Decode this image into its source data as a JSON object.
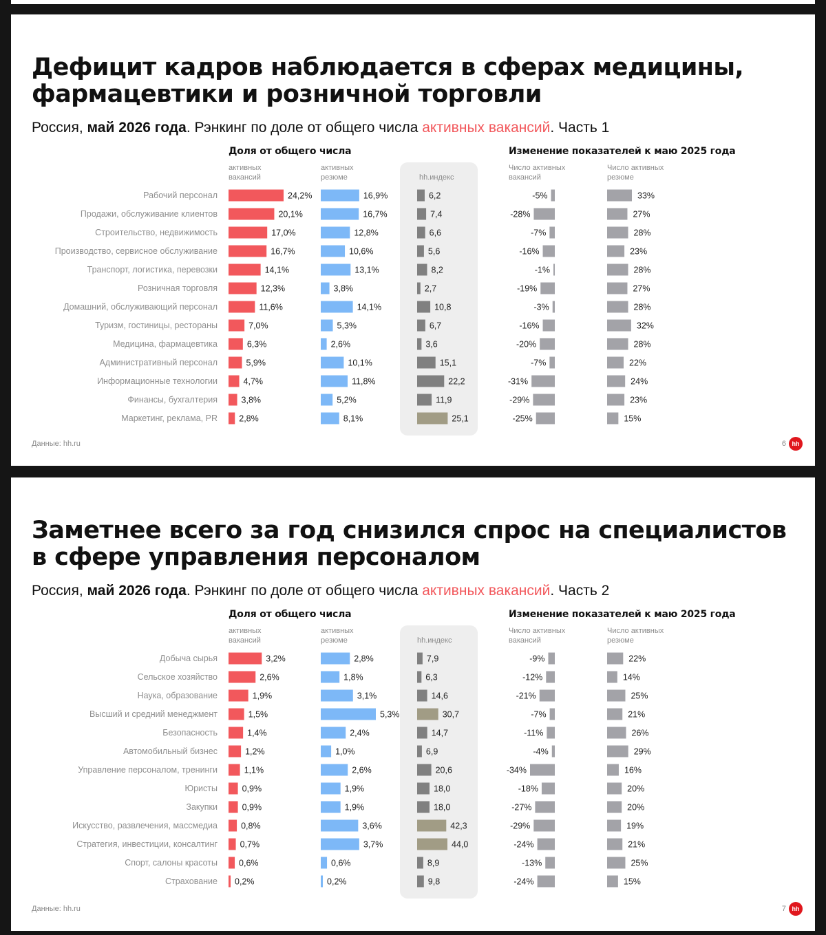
{
  "slides": [
    {
      "title_line1": "Дефицит кадров наблюдается в сферах медицины,",
      "title_line2": "фармацевтики и розничной торговли",
      "subtitle": {
        "part1": "Россия, ",
        "bold": "май 2026 года",
        "part2": ". Рэнкинг по доле от общего числа ",
        "highlight": "активных вакансий",
        "part3": ". Часть 1"
      },
      "header_share": "Доля от общего числа",
      "header_vac_l1": "активных",
      "header_vac_l2": "вакансий",
      "header_res_l1": "активных",
      "header_res_l2": "резюме",
      "header_hh": "hh.индекс",
      "header_change": "Изменение показателей к маю 2025 года",
      "header_chg_vac_l1": "Число активных",
      "header_chg_vac_l2": "вакансий",
      "header_chg_res_l1": "Число активных",
      "header_chg_res_l2": "резюме",
      "source": "Данные: hh.ru",
      "page": "6",
      "logo": "hh"
    },
    {
      "title_line1": "Заметнее всего за год снизился спрос на специалистов",
      "title_line2": "в сфере управления персоналом",
      "subtitle": {
        "part1": "Россия, ",
        "bold": "май 2026 года",
        "part2": ". Рэнкинг по доле от общего числа ",
        "highlight": "активных вакансий",
        "part3": ". Часть 2"
      },
      "header_share": "Доля от общего числа",
      "header_vac_l1": "активных",
      "header_vac_l2": "вакансий",
      "header_res_l1": "активных",
      "header_res_l2": "резюме",
      "header_hh": "hh.индекс",
      "header_change": "Изменение показателей к маю 2025 года",
      "header_chg_vac_l1": "Число активных",
      "header_chg_vac_l2": "вакансий",
      "header_chg_res_l1": "Число активных",
      "header_chg_res_l2": "резюме",
      "source": "Данные: hh.ru",
      "page": "7",
      "logo": "hh"
    }
  ],
  "colors": {
    "vacancies": "#f2585c",
    "resumes": "#7db8f7",
    "hh_index_low": "#808080",
    "hh_index_high": "#a19c85",
    "change": "#a3a3a8",
    "highlight": "#f2585c"
  },
  "chart_data": [
    {
      "type": "table",
      "categories": [
        "Рабочий персонал",
        "Продажи, обслуживание клиентов",
        "Строительство, недвижимость",
        "Производство, сервисное обслуживание",
        "Транспорт, логистика, перевозки",
        "Розничная торговля",
        "Домашний, обслуживающий персонал",
        "Туризм, гостиницы, рестораны",
        "Медицина, фармацевтика",
        "Административный персонал",
        "Информационные технологии",
        "Финансы, бухгалтерия",
        "Маркетинг, реклама, PR"
      ],
      "series": [
        {
          "values": [
            24.2,
            20.1,
            17.0,
            16.7,
            14.1,
            12.3,
            11.6,
            7.0,
            6.3,
            5.9,
            4.7,
            3.8,
            2.8
          ],
          "labels": [
            "24,2%",
            "20,1%",
            "17,0%",
            "16,7%",
            "14,1%",
            "12,3%",
            "11,6%",
            "7,0%",
            "6,3%",
            "5,9%",
            "4,7%",
            "3,8%",
            "2,8%"
          ]
        },
        {
          "values": [
            16.9,
            16.7,
            12.8,
            10.6,
            13.1,
            3.8,
            14.1,
            5.3,
            2.6,
            10.1,
            11.8,
            5.2,
            8.1
          ],
          "labels": [
            "16,9%",
            "16,7%",
            "12,8%",
            "10,6%",
            "13,1%",
            "3,8%",
            "14,1%",
            "5,3%",
            "2,6%",
            "10,1%",
            "11,8%",
            "5,2%",
            "8,1%"
          ]
        },
        {
          "values": [
            6.2,
            7.4,
            6.6,
            5.6,
            8.2,
            2.7,
            10.8,
            6.7,
            3.6,
            15.1,
            22.2,
            11.9,
            25.1
          ],
          "labels": [
            "6,2",
            "7,4",
            "6,6",
            "5,6",
            "8,2",
            "2,7",
            "10,8",
            "6,7",
            "3,6",
            "15,1",
            "22,2",
            "11,9",
            "25,1"
          ]
        },
        {
          "values": [
            -5,
            -28,
            -7,
            -16,
            -1,
            -19,
            -3,
            -16,
            -20,
            -7,
            -31,
            -29,
            -25
          ],
          "labels": [
            "-5%",
            "-28%",
            "-7%",
            "-16%",
            "-1%",
            "-19%",
            "-3%",
            "-16%",
            "-20%",
            "-7%",
            "-31%",
            "-29%",
            "-25%"
          ]
        },
        {
          "values": [
            33,
            27,
            28,
            23,
            28,
            27,
            28,
            32,
            28,
            22,
            24,
            23,
            15
          ],
          "labels": [
            "33%",
            "27%",
            "28%",
            "23%",
            "28%",
            "27%",
            "28%",
            "32%",
            "28%",
            "22%",
            "24%",
            "23%",
            "15%"
          ]
        }
      ]
    },
    {
      "type": "table",
      "categories": [
        "Добыча сырья",
        "Сельское хозяйство",
        "Наука, образование",
        "Высший и средний менеджмент",
        "Безопасность",
        "Автомобильный бизнес",
        "Управление персоналом, тренинги",
        "Юристы",
        "Закупки",
        "Искусство, развлечения, массмедиа",
        "Стратегия, инвестиции, консалтинг",
        "Спорт, салоны красоты",
        "Страхование"
      ],
      "series": [
        {
          "values": [
            3.2,
            2.6,
            1.9,
            1.5,
            1.4,
            1.2,
            1.1,
            0.9,
            0.9,
            0.8,
            0.7,
            0.6,
            0.2
          ],
          "labels": [
            "3,2%",
            "2,6%",
            "1,9%",
            "1,5%",
            "1,4%",
            "1,2%",
            "1,1%",
            "0,9%",
            "0,9%",
            "0,8%",
            "0,7%",
            "0,6%",
            "0,2%"
          ]
        },
        {
          "values": [
            2.8,
            1.8,
            3.1,
            5.3,
            2.4,
            1.0,
            2.6,
            1.9,
            1.9,
            3.6,
            3.7,
            0.6,
            0.2
          ],
          "labels": [
            "2,8%",
            "1,8%",
            "3,1%",
            "5,3%",
            "2,4%",
            "1,0%",
            "2,6%",
            "1,9%",
            "1,9%",
            "3,6%",
            "3,7%",
            "0,6%",
            "0,2%"
          ]
        },
        {
          "values": [
            7.9,
            6.3,
            14.6,
            30.7,
            14.7,
            6.9,
            20.6,
            18.0,
            18.0,
            42.3,
            44.0,
            8.9,
            9.8
          ],
          "labels": [
            "7,9",
            "6,3",
            "14,6",
            "30,7",
            "14,7",
            "6,9",
            "20,6",
            "18,0",
            "18,0",
            "42,3",
            "44,0",
            "8,9",
            "9,8"
          ]
        },
        {
          "values": [
            -9,
            -12,
            -21,
            -7,
            -11,
            -4,
            -34,
            -18,
            -27,
            -29,
            -24,
            -13,
            -24
          ],
          "labels": [
            "-9%",
            "-12%",
            "-21%",
            "-7%",
            "-11%",
            "-4%",
            "-34%",
            "-18%",
            "-27%",
            "-29%",
            "-24%",
            "-13%",
            "-24%"
          ]
        },
        {
          "values": [
            22,
            14,
            25,
            21,
            26,
            29,
            16,
            20,
            20,
            19,
            21,
            25,
            15
          ],
          "labels": [
            "22%",
            "14%",
            "25%",
            "21%",
            "26%",
            "29%",
            "16%",
            "20%",
            "20%",
            "19%",
            "21%",
            "25%",
            "15%"
          ]
        }
      ]
    }
  ]
}
